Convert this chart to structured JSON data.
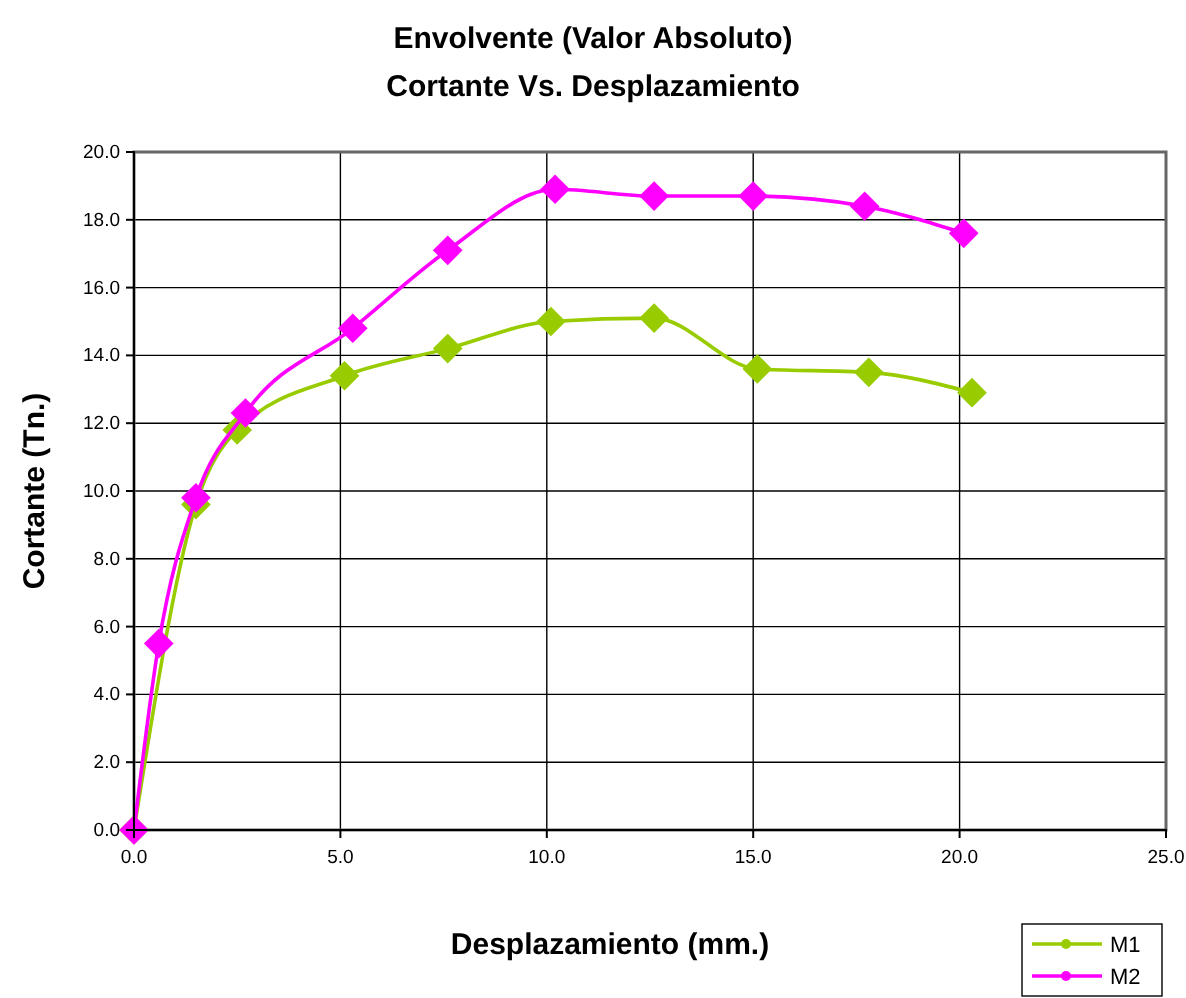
{
  "chart_data": {
    "type": "line",
    "title": "Envolvente (Valor Absoluto)",
    "subtitle": "Cortante Vs. Desplazamiento",
    "xlabel": "Desplazamiento (mm.)",
    "ylabel": "Cortante (Tn.)",
    "xlim": [
      0,
      25
    ],
    "xticks": [
      {
        "value": 0,
        "label": "0.0"
      },
      {
        "value": 5,
        "label": "5.0"
      },
      {
        "value": 10,
        "label": "10.0"
      },
      {
        "value": 15,
        "label": "15.0"
      },
      {
        "value": 20,
        "label": "20.0"
      },
      {
        "value": 25,
        "label": "25.0"
      }
    ],
    "ylim": [
      0,
      20
    ],
    "yticks": [
      {
        "value": 0,
        "label": "0.0"
      },
      {
        "value": 2,
        "label": "2.0"
      },
      {
        "value": 4,
        "label": "4.0"
      },
      {
        "value": 6,
        "label": "6.0"
      },
      {
        "value": 8,
        "label": "8.0"
      },
      {
        "value": 10,
        "label": "10.0"
      },
      {
        "value": 12,
        "label": "12.0"
      },
      {
        "value": 14,
        "label": "14.0"
      },
      {
        "value": 16,
        "label": "16.0"
      },
      {
        "value": 18,
        "label": "18.0"
      },
      {
        "value": 20,
        "label": "20.0"
      }
    ],
    "grid": true,
    "legend": "bottom right",
    "marker": "diamond",
    "line_style": "solid",
    "series": [
      {
        "name": "M1",
        "color": "#99cc00",
        "x": [
          0,
          0.6,
          1.5,
          2.5,
          5.1,
          7.6,
          10.1,
          12.6,
          15.1,
          17.8,
          20.3
        ],
        "values": [
          0,
          null,
          9.6,
          11.8,
          13.4,
          14.2,
          15.0,
          15.1,
          13.6,
          13.5,
          12.9
        ]
      },
      {
        "name": "M2",
        "color": "#ff00ff",
        "x": [
          0,
          0.6,
          1.5,
          2.7,
          5.3,
          7.6,
          10.2,
          12.6,
          15.0,
          17.7,
          20.1
        ],
        "values": [
          0,
          5.5,
          9.8,
          12.3,
          14.8,
          17.1,
          18.9,
          18.7,
          18.7,
          18.4,
          17.6
        ]
      }
    ]
  }
}
